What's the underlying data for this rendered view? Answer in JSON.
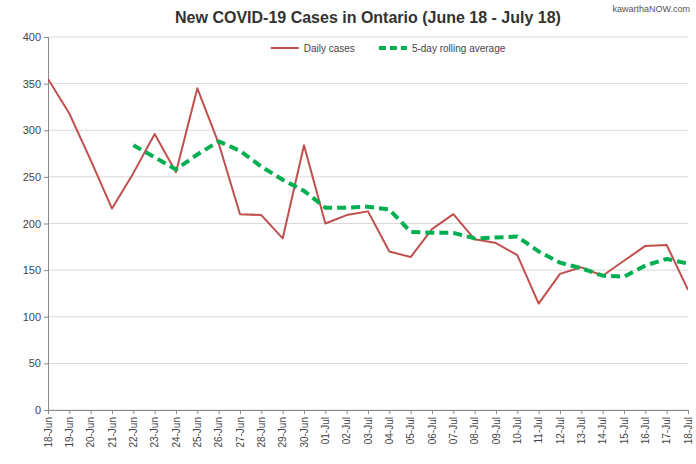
{
  "chart_data": {
    "type": "line",
    "title": "New COVID-19 Cases in Ontario (June 18 - July 18)",
    "annotation": "kawarthaNOW.com",
    "categories": [
      "18-Jun",
      "19-Jun",
      "20-Jun",
      "21-Jun",
      "22-Jun",
      "23-Jun",
      "24-Jun",
      "25-Jun",
      "26-Jun",
      "27-Jun",
      "28-Jun",
      "29-Jun",
      "30-Jun",
      "01-Jul",
      "02-Jul",
      "03-Jul",
      "04-Jul",
      "05-Jul",
      "06-Jul",
      "07-Jul",
      "08-Jul",
      "09-Jul",
      "10-Jul",
      "11-Jul",
      "12-Jul",
      "13-Jul",
      "14-Jul",
      "15-Jul",
      "16-Jul",
      "17-Jul",
      "18-Jul"
    ],
    "series": [
      {
        "name": "Daily cases",
        "color": "#c0504d",
        "line_style": "solid",
        "values": [
          355,
          318,
          268,
          216,
          254,
          296,
          255,
          345,
          286,
          210,
          209,
          184,
          284,
          200,
          209,
          213,
          170,
          164,
          194,
          210,
          183,
          179,
          166,
          114,
          146,
          153,
          144,
          160,
          176,
          177,
          129
        ]
      },
      {
        "name": "5-day rolling average",
        "color": "#00b050",
        "line_style": "dashed",
        "values": [
          null,
          null,
          null,
          null,
          284,
          271,
          258,
          274,
          288,
          278,
          261,
          247,
          235,
          217,
          217,
          218,
          215,
          191,
          190,
          190,
          184,
          185,
          186,
          170,
          158,
          152,
          144,
          143,
          155,
          162,
          157
        ]
      }
    ],
    "ylim": [
      0,
      400
    ],
    "yticks": [
      0,
      50,
      100,
      150,
      200,
      250,
      300,
      350,
      400
    ],
    "grid": true,
    "legend": "top"
  }
}
